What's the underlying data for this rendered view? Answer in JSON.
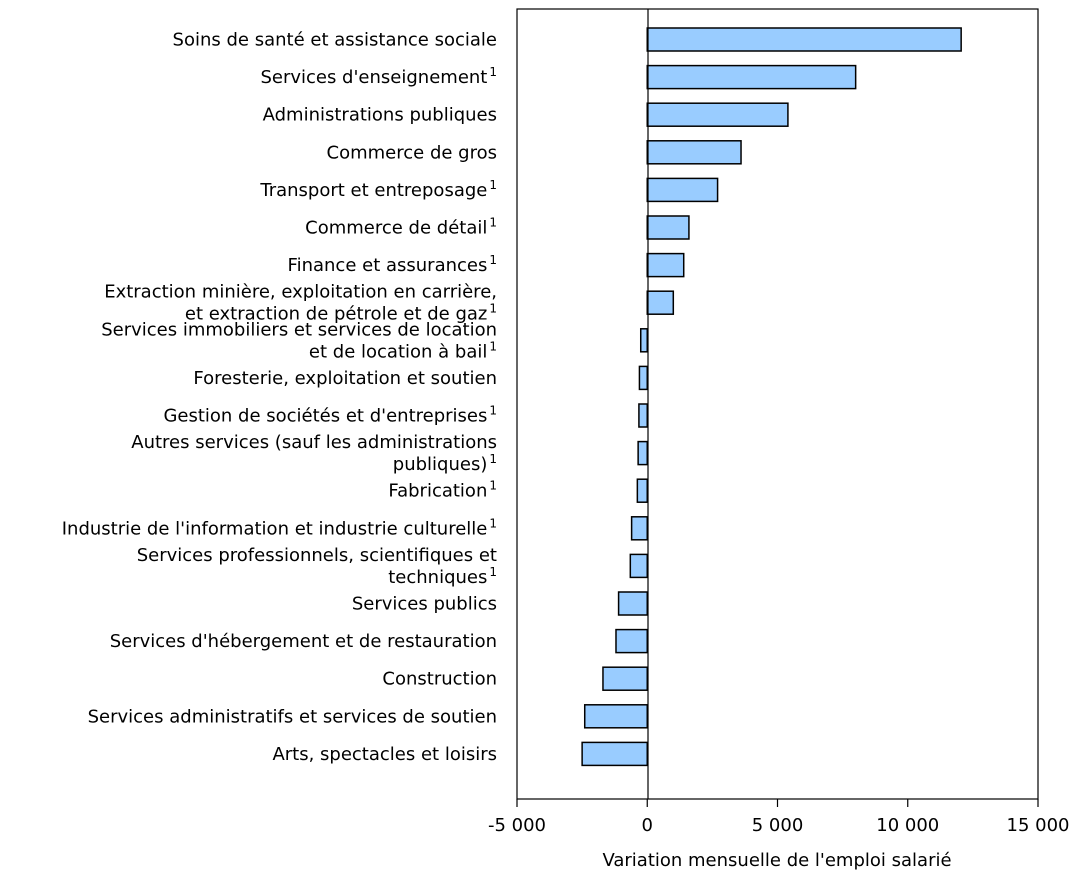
{
  "chart_data": {
    "type": "bar",
    "orientation": "horizontal",
    "xlabel": "Variation mensuelle de l'emploi salarié",
    "xlim": [
      -5000,
      15000
    ],
    "xticks": [
      {
        "value": -5000,
        "label": "-5 000"
      },
      {
        "value": 0,
        "label": "0"
      },
      {
        "value": 5000,
        "label": "5 000"
      },
      {
        "value": 10000,
        "label": "10 000"
      },
      {
        "value": 15000,
        "label": "15 000"
      }
    ],
    "bar_color": "#99ccff",
    "bar_edge_color": "#000000",
    "grid": false,
    "categories": [
      {
        "lines": [
          "Soins de santé et assistance sociale"
        ],
        "note": "",
        "value": 12050
      },
      {
        "lines": [
          "Services d'enseignement"
        ],
        "note": "1",
        "value": 8000
      },
      {
        "lines": [
          "Administrations publiques"
        ],
        "note": "",
        "value": 5400
      },
      {
        "lines": [
          "Commerce de gros"
        ],
        "note": "",
        "value": 3600
      },
      {
        "lines": [
          "Transport et entreposage"
        ],
        "note": "1",
        "value": 2700
      },
      {
        "lines": [
          "Commerce de détail"
        ],
        "note": "1",
        "value": 1600
      },
      {
        "lines": [
          "Finance et assurances"
        ],
        "note": "1",
        "value": 1400
      },
      {
        "lines": [
          "Extraction minière, exploitation en carrière,",
          "et extraction de pétrole et de gaz"
        ],
        "note": "1",
        "value": 1000
      },
      {
        "lines": [
          "Services immobiliers et services de location",
          "et de location à bail"
        ],
        "note": "1",
        "value": -250
      },
      {
        "lines": [
          "Foresterie, exploitation et soutien"
        ],
        "note": "",
        "value": -300
      },
      {
        "lines": [
          "Gestion de sociétés et d'entreprises"
        ],
        "note": "1",
        "value": -320
      },
      {
        "lines": [
          "Autres services (sauf les administrations",
          "publiques)"
        ],
        "note": "1",
        "value": -350
      },
      {
        "lines": [
          "Fabrication"
        ],
        "note": "1",
        "value": -380
      },
      {
        "lines": [
          "Industrie de l'information et industrie culturelle"
        ],
        "note": "1",
        "value": -600
      },
      {
        "lines": [
          "Services professionnels, scientifiques et",
          "techniques"
        ],
        "note": "1",
        "value": -650
      },
      {
        "lines": [
          "Services publics"
        ],
        "note": "",
        "value": -1100
      },
      {
        "lines": [
          "Services d'hébergement et de restauration"
        ],
        "note": "",
        "value": -1200
      },
      {
        "lines": [
          "Construction"
        ],
        "note": "",
        "value": -1700
      },
      {
        "lines": [
          "Services administratifs et services de soutien"
        ],
        "note": "",
        "value": -2400
      },
      {
        "lines": [
          "Arts, spectacles et loisirs"
        ],
        "note": "",
        "value": -2500
      }
    ]
  }
}
